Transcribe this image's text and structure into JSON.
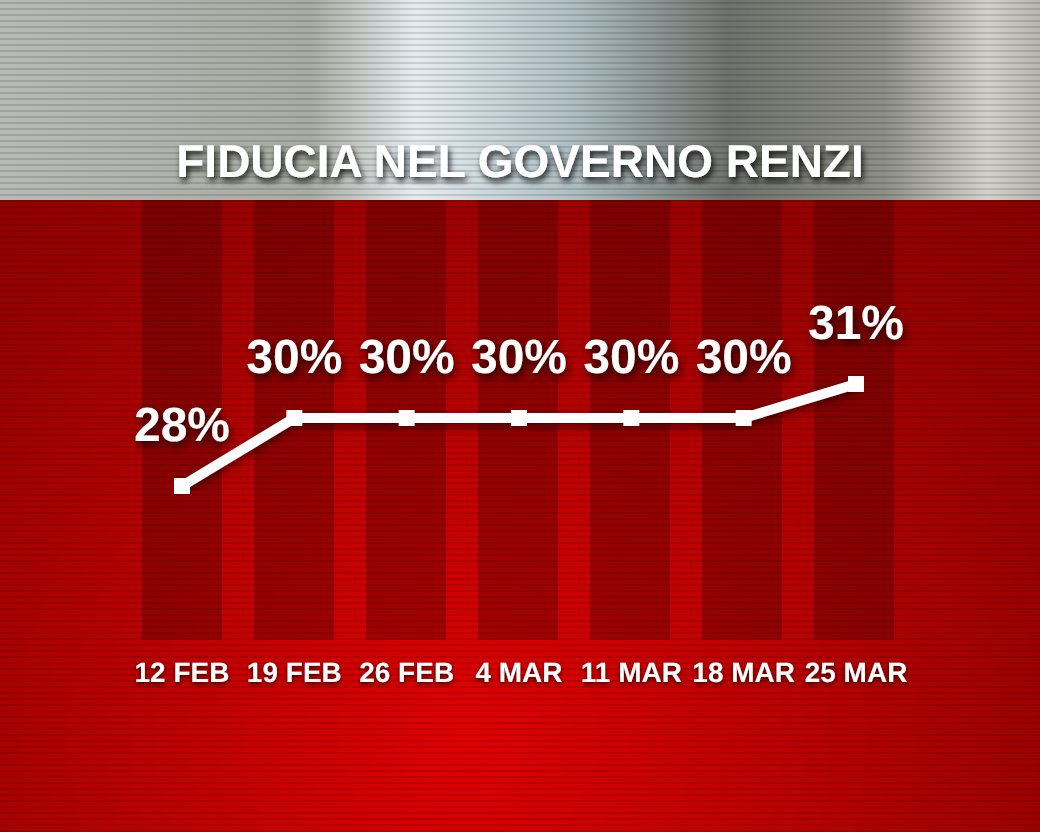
{
  "chart_data": {
    "type": "line",
    "title": "FIDUCIA NEL GOVERNO RENZI",
    "categories": [
      "12 FEB",
      "19 FEB",
      "26 FEB",
      "4 MAR",
      "11 MAR",
      "18 MAR",
      "25 MAR"
    ],
    "series": [
      {
        "color": "#ffffff",
        "values": [
          28,
          30,
          30,
          30,
          30,
          30,
          31
        ],
        "value_labels": [
          "28%",
          "30%",
          "30%",
          "30%",
          "30%",
          "30%",
          "31%"
        ]
      }
    ],
    "marker": "square",
    "line_style": "solid",
    "tick_labels": "x"
  }
}
